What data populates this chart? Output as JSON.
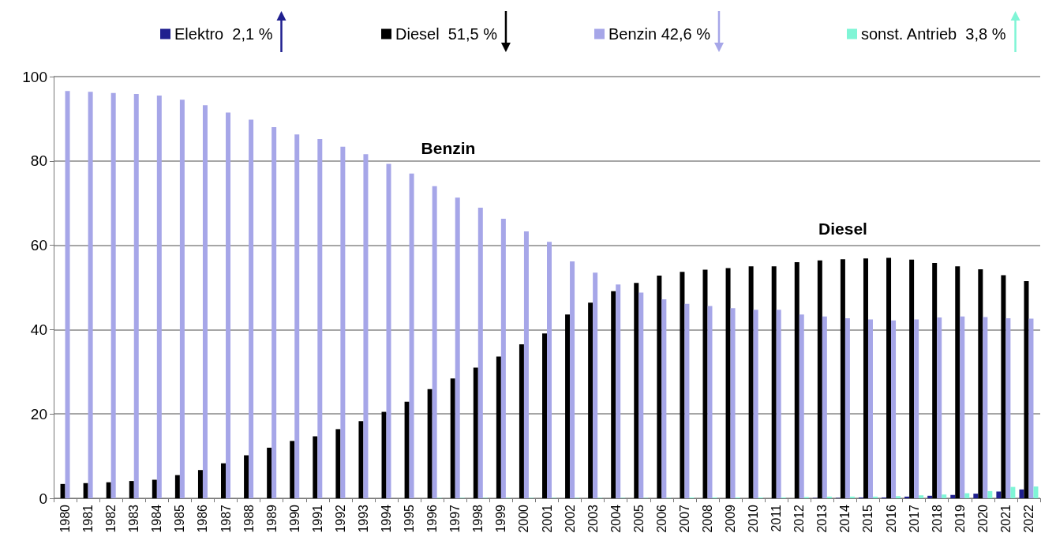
{
  "chart_data": {
    "type": "bar",
    "categories": [
      "1980",
      "1981",
      "1982",
      "1983",
      "1984",
      "1985",
      "1986",
      "1987",
      "1988",
      "1989",
      "1990",
      "1991",
      "1992",
      "1993",
      "1994",
      "1995",
      "1996",
      "1997",
      "1998",
      "1999",
      "2000",
      "2001",
      "2002",
      "2003",
      "2004",
      "2005",
      "2006",
      "2007",
      "2008",
      "2009",
      "2010",
      "2011",
      "2012",
      "2013",
      "2014",
      "2015",
      "2016",
      "2017",
      "2018",
      "2019",
      "2020",
      "2021",
      "2022"
    ],
    "series": [
      {
        "name": "Elektro  2,1 %",
        "color": "#1f1f8f",
        "values": [
          0,
          0,
          0,
          0,
          0,
          0,
          0,
          0,
          0,
          0,
          0,
          0,
          0,
          0,
          0,
          0,
          0,
          0,
          0,
          0,
          0,
          0,
          0,
          0,
          0,
          0,
          0,
          0,
          0,
          0,
          0,
          0,
          0,
          0.1,
          0.1,
          0.2,
          0.2,
          0.4,
          0.6,
          0.8,
          1.1,
          1.6,
          2.1
        ]
      },
      {
        "name": "Diesel  51,5 %",
        "color": "#000000",
        "values": [
          3.4,
          3.6,
          3.8,
          4.1,
          4.4,
          5.5,
          6.7,
          8.3,
          10.2,
          12,
          13.6,
          14.7,
          16.4,
          18.3,
          20.5,
          22.9,
          25.9,
          28.4,
          31,
          33.6,
          36.5,
          39.1,
          43.6,
          46.4,
          49.1,
          51.1,
          52.8,
          53.7,
          54.2,
          54.6,
          55,
          55,
          56,
          56.4,
          56.7,
          56.9,
          57,
          56.6,
          55.8,
          55,
          54.3,
          52.9,
          51.5
        ]
      },
      {
        "name": "Benzin 42,6 %",
        "color": "#a6a6e8",
        "values": [
          96.6,
          96.4,
          96.1,
          95.9,
          95.5,
          94.5,
          93.2,
          91.5,
          89.8,
          88,
          86.3,
          85.2,
          83.4,
          81.6,
          79.3,
          77,
          74,
          71.3,
          68.9,
          66.3,
          63.3,
          60.8,
          56.2,
          53.5,
          50.7,
          48.8,
          47.2,
          46.1,
          45.6,
          45.1,
          44.7,
          44.7,
          43.6,
          43.1,
          42.7,
          42.4,
          42.2,
          42.4,
          42.9,
          43.1,
          43,
          42.7,
          42.6
        ]
      },
      {
        "name": "sonst. Antrieb  3,8 %",
        "color": "#7ff5d6",
        "values": [
          0,
          0,
          0,
          0,
          0,
          0,
          0,
          0,
          0,
          0,
          0,
          0,
          0,
          0,
          0,
          0,
          0.1,
          0.1,
          0.1,
          0.1,
          0.1,
          0.1,
          0.1,
          0.1,
          0.1,
          0.1,
          0.1,
          0.2,
          0.2,
          0.2,
          0.2,
          0.2,
          0.3,
          0.4,
          0.4,
          0.4,
          0.5,
          0.7,
          0.9,
          1.2,
          1.7,
          2.7,
          2.8
        ]
      }
    ],
    "ylim": [
      0,
      100
    ],
    "yticks": [
      0,
      20,
      40,
      60,
      80,
      100
    ],
    "grid": "y",
    "legend": "top",
    "annotations": [
      "Benzin",
      "Diesel"
    ]
  }
}
